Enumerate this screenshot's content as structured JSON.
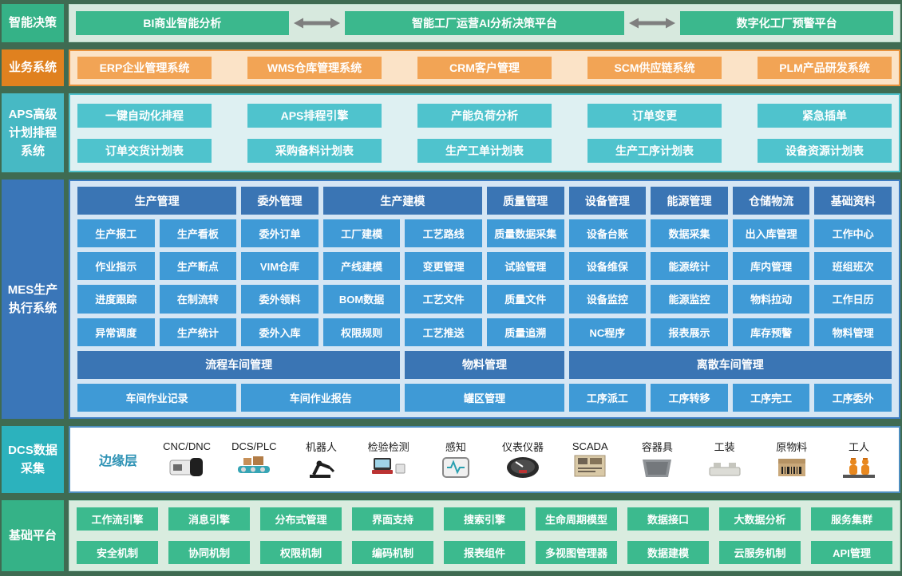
{
  "decision": {
    "label": "智能决策",
    "items": [
      "BI商业智能分析",
      "智能工厂运营AI分析决策平台",
      "数字化工厂预警平台"
    ]
  },
  "business": {
    "label": "业务系统",
    "items": [
      "ERP企业管理系统",
      "WMS仓库管理系统",
      "CRM客户管理",
      "SCM供应链系统",
      "PLM产品研发系统"
    ]
  },
  "aps": {
    "label": "APS高级计划排程系统",
    "rows": [
      [
        "一键自动化排程",
        "APS排程引擎",
        "产能负荷分析",
        "订单变更",
        "紧急插单"
      ],
      [
        "订单交货计划表",
        "采购备料计划表",
        "生产工单计划表",
        "生产工序计划表",
        "设备资源计划表"
      ]
    ]
  },
  "mes": {
    "label": "MES生产执行系统",
    "header_row": [
      {
        "label": "生产管理",
        "span": 2
      },
      {
        "label": "委外管理",
        "span": 1
      },
      {
        "label": "生产建模",
        "span": 2
      },
      {
        "label": "质量管理",
        "span": 1
      },
      {
        "label": "设备管理",
        "span": 1
      },
      {
        "label": "能源管理",
        "span": 1
      },
      {
        "label": "仓储物流",
        "span": 1
      },
      {
        "label": "基础资料",
        "span": 1
      }
    ],
    "cell_rows": [
      [
        "生产报工",
        "生产看板",
        "委外订单",
        "工厂建模",
        "工艺路线",
        "质量数据采集",
        "设备台账",
        "数据采集",
        "出入库管理",
        "工作中心"
      ],
      [
        "作业指示",
        "生产断点",
        "VIM仓库",
        "产线建模",
        "变更管理",
        "试验管理",
        "设备维保",
        "能源统计",
        "库内管理",
        "班组班次"
      ],
      [
        "进度跟踪",
        "在制流转",
        "委外领料",
        "BOM数据",
        "工艺文件",
        "质量文件",
        "设备监控",
        "能源监控",
        "物料拉动",
        "工作日历"
      ],
      [
        "异常调度",
        "生产统计",
        "委外入库",
        "权限规则",
        "工艺推送",
        "质量追溯",
        "NC程序",
        "报表展示",
        "库存预警",
        "物料管理"
      ]
    ],
    "group_row": [
      {
        "label": "流程车间管理",
        "span": 4
      },
      {
        "label": "物料管理",
        "span": 2
      },
      {
        "label": "离散车间管理",
        "span": 4
      }
    ],
    "bottom_row": [
      {
        "label": "车间作业记录",
        "span": 2
      },
      {
        "label": "车间作业报告",
        "span": 2
      },
      {
        "label": "罐区管理",
        "span": 2
      },
      {
        "label": "工序派工",
        "span": 1
      },
      {
        "label": "工序转移",
        "span": 1
      },
      {
        "label": "工序完工",
        "span": 1
      },
      {
        "label": "工序委外",
        "span": 1
      }
    ]
  },
  "dcs": {
    "label": "DCS数据采集",
    "edge_label": "边缘层",
    "devices": [
      {
        "name": "cnc-machine",
        "label": "CNC/DNC"
      },
      {
        "name": "dcs-plc-conveyor",
        "label": "DCS/PLC"
      },
      {
        "name": "robot-arm",
        "label": "机器人"
      },
      {
        "name": "inspection-station",
        "label": "检验检测"
      },
      {
        "name": "sensor",
        "label": "感知"
      },
      {
        "name": "instrument-gauge",
        "label": "仪表仪器"
      },
      {
        "name": "scada-panel",
        "label": "SCADA"
      },
      {
        "name": "container-bin",
        "label": "容器具"
      },
      {
        "name": "fixture-tooling",
        "label": "工装"
      },
      {
        "name": "raw-material-box",
        "label": "原物料"
      },
      {
        "name": "workers",
        "label": "工人"
      }
    ]
  },
  "platform": {
    "label": "基础平台",
    "rows": [
      [
        "工作流引擎",
        "消息引擎",
        "分布式管理",
        "界面支持",
        "搜索引擎",
        "生命周期模型",
        "数据接口",
        "大数据分析",
        "服务集群"
      ],
      [
        "安全机制",
        "协同机制",
        "权限机制",
        "编码机制",
        "报表组件",
        "多视图管理器",
        "数据建模",
        "云服务机制",
        "API管理"
      ]
    ]
  },
  "colors": {
    "background": "#3f6b52",
    "green_label": "#35b287",
    "green_button": "#3bb88d",
    "orange_label": "#e0811f",
    "orange_button": "#f2a455",
    "teal_label": "#47b9c4",
    "teal_button": "#4fc3cd",
    "mes_label": "#3a76b8",
    "mes_header": "#3a75b4",
    "mes_cell": "#3f9ad6",
    "dcs_label": "#2cb2bd",
    "arrow_gray": "#7f7f7f"
  }
}
